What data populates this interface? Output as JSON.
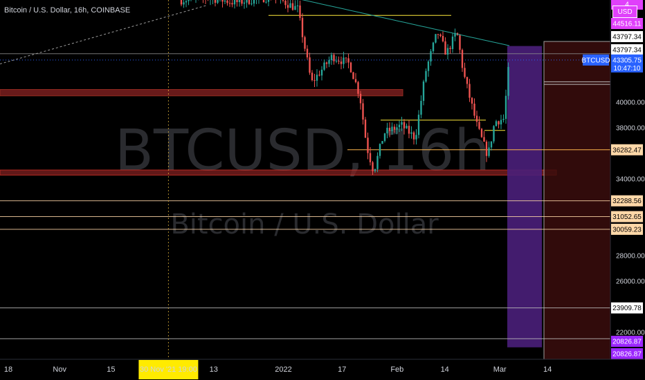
{
  "chart_data": {
    "type": "candlestick",
    "title": "Bitcoin / U.S. Dollar, 16h, COINBASE",
    "watermark": {
      "symbol": "BTCUSD, 16h",
      "description": "Bitcoin / U.S. Dollar"
    },
    "currency_button": "USD",
    "ylim": [
      20500,
      48500
    ],
    "y_ticks": [
      {
        "value": 40000,
        "label": "40000.00"
      },
      {
        "value": 38000,
        "label": "38000.00"
      },
      {
        "value": 34000,
        "label": "34000.00"
      },
      {
        "value": 28000,
        "label": "28000.00"
      },
      {
        "value": 26000,
        "label": "26000.00"
      },
      {
        "value": 22000,
        "label": "22000.00"
      }
    ],
    "x_ticks": [
      {
        "date": "2021-10-18",
        "label": "18"
      },
      {
        "date": "2021-11-01",
        "label": "Nov"
      },
      {
        "date": "2021-11-15",
        "label": "15"
      },
      {
        "date": "2021-12-13",
        "label": "13"
      },
      {
        "date": "2022-01-01",
        "label": "2022"
      },
      {
        "date": "2022-01-17",
        "label": "17"
      },
      {
        "date": "2022-02-01",
        "label": "Feb"
      },
      {
        "date": "2022-02-14",
        "label": "14"
      },
      {
        "date": "2022-03-01",
        "label": "Mar"
      },
      {
        "date": "2022-03-14",
        "label": "14"
      }
    ],
    "crosshair": {
      "date": "2021-11-30",
      "label": "30 Nov '21   19:00"
    },
    "price_tags": [
      {
        "value": 48200,
        "label": "4",
        "color": "#e040fb",
        "text_color": "#ffffff"
      },
      {
        "value": 44516.11,
        "label": "44516.11",
        "color": "#e040fb",
        "text_color": "#ffffff"
      },
      {
        "value": 43797.34,
        "label": "43797.34",
        "color": "#ffffff",
        "text_color": "#000000"
      },
      {
        "value": 43797.34,
        "label": "43797.34",
        "color": "#ffffff",
        "text_color": "#000000"
      },
      {
        "value": 36282.47,
        "label": "36282.47",
        "color": "#ffd8a8",
        "text_color": "#000000"
      },
      {
        "value": 32288.56,
        "label": "32288.56",
        "color": "#ffd8a8",
        "text_color": "#000000"
      },
      {
        "value": 31052.65,
        "label": "31052.65",
        "color": "#ffd8a8",
        "text_color": "#000000"
      },
      {
        "value": 30059.23,
        "label": "30059.23",
        "color": "#ffd8a8",
        "text_color": "#000000"
      },
      {
        "value": 23909.78,
        "label": "23909.78",
        "color": "#ffffff",
        "text_color": "#000000"
      },
      {
        "value": 20826.87,
        "label": "20826.87",
        "color": "#9c27ff",
        "text_color": "#ffffff"
      },
      {
        "value": 20826.87,
        "label": "20826.87",
        "color": "#9c27ff",
        "text_color": "#ffffff"
      }
    ],
    "last_price": {
      "symbol": "BTCUSD",
      "value": 43305.75,
      "label": "43305.75",
      "countdown": "10:47:10",
      "color": "#2962ff"
    },
    "horizontal_lines": [
      {
        "value": 43797.34,
        "color": "#8a8a8a",
        "label_ref": "43797.34"
      },
      {
        "value": 32288.56,
        "color": "#ffd8a8"
      },
      {
        "value": 31052.65,
        "color": "#ffd8a8"
      },
      {
        "value": 30059.23,
        "color": "#ffd8a8"
      },
      {
        "value": 23909.78,
        "color": "#bdbdbd"
      },
      {
        "value": 21500,
        "color": "#bdbdbd"
      }
    ],
    "ma_color": "#26a69a",
    "colors": {
      "up": "#26a69a",
      "down": "#ef5350",
      "zone_red": "#8b2323",
      "zone_purple": "#4a1f7a",
      "level_yellow": "#ffeb3b",
      "level_orange": "#ffb74d"
    }
  }
}
